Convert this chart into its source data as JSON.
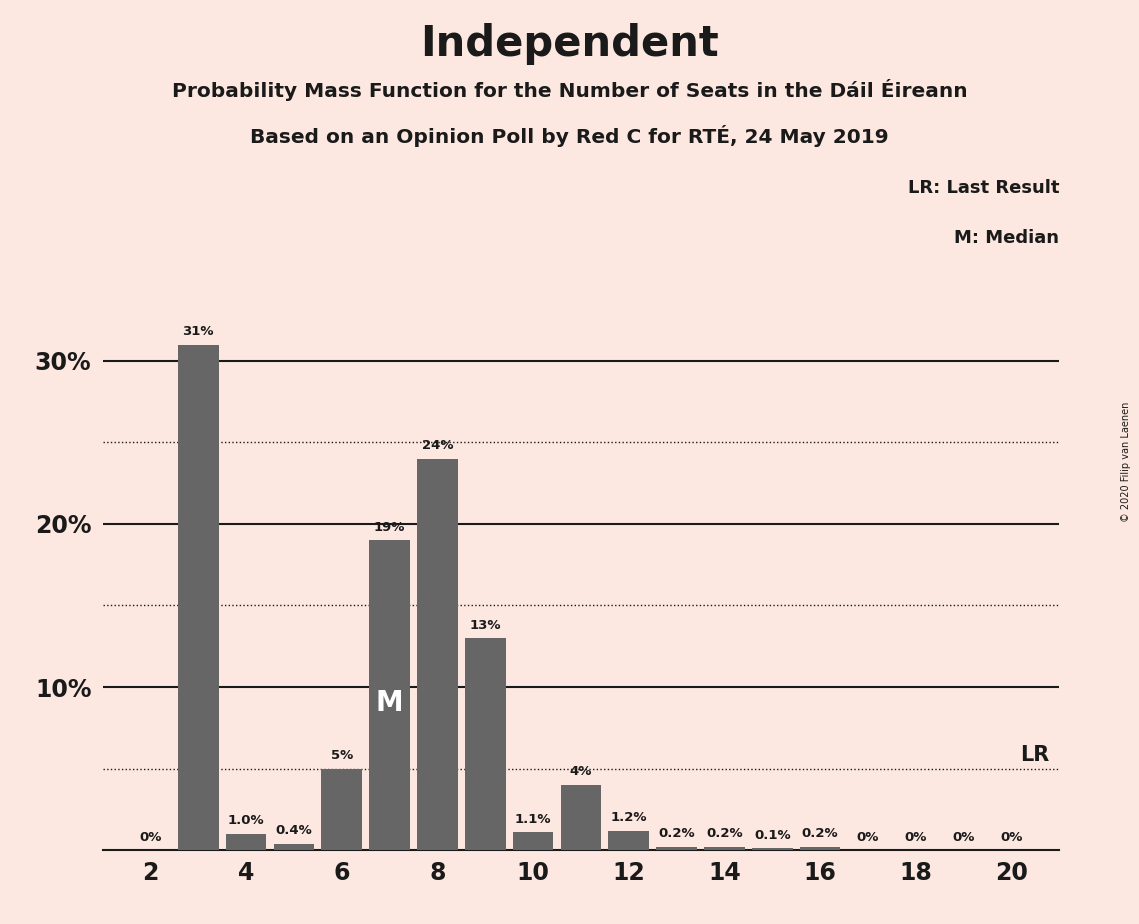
{
  "title": "Independent",
  "subtitle1": "Probability Mass Function for the Number of Seats in the Dáil Éireann",
  "subtitle2": "Based on an Opinion Poll by Red C for RTÉ, 24 May 2019",
  "copyright": "© 2020 Filip van Laenen",
  "background_color": "#fce8e0",
  "bar_color": "#666666",
  "seats": [
    2,
    3,
    4,
    5,
    6,
    7,
    8,
    9,
    10,
    11,
    12,
    13,
    14,
    15,
    16,
    17,
    18,
    19,
    20
  ],
  "values": [
    0.0,
    31.0,
    1.0,
    0.4,
    5.0,
    19.0,
    24.0,
    13.0,
    1.1,
    4.0,
    1.2,
    0.2,
    0.2,
    0.1,
    0.2,
    0.0,
    0.0,
    0.0,
    0.0
  ],
  "labels": [
    "0%",
    "31%",
    "1.0%",
    "0.4%",
    "5%",
    "19%",
    "24%",
    "13%",
    "1.1%",
    "4%",
    "1.2%",
    "0.2%",
    "0.2%",
    "0.1%",
    "0.2%",
    "0%",
    "0%",
    "0%",
    "0%"
  ],
  "median_seat": 7,
  "lr_value": 5,
  "solid_grid_lines": [
    10,
    20,
    30
  ],
  "dotted_grid_lines": [
    5,
    15,
    25
  ],
  "xlim": [
    1,
    21
  ],
  "ylim": [
    0,
    34
  ]
}
